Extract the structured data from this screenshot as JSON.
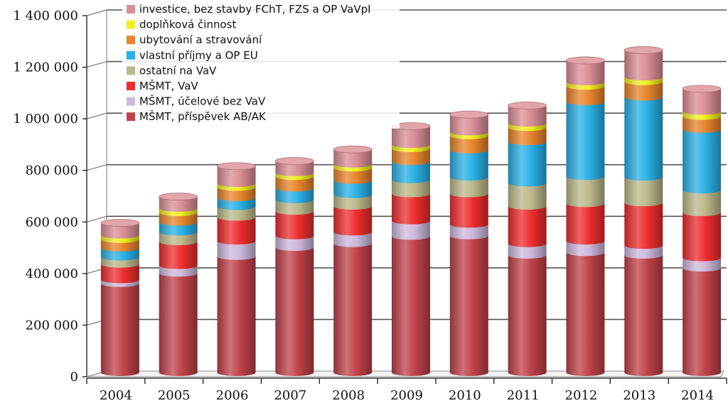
{
  "chart_data": {
    "type": "bar",
    "stacked": true,
    "categories": [
      "2004",
      "2005",
      "2006",
      "2007",
      "2008",
      "2009",
      "2010",
      "2011",
      "2012",
      "2013",
      "2014"
    ],
    "ylim": [
      0,
      1400000
    ],
    "yticks": [
      0,
      200000,
      400000,
      600000,
      800000,
      1000000,
      1200000,
      1400000
    ],
    "ytick_labels": [
      "0",
      "200 000",
      "400 000",
      "600 000",
      "800 000",
      "1 000 000",
      "1 200 000",
      "1 400 000"
    ],
    "grid": true,
    "legend_position": "top-left",
    "series": [
      {
        "name": "MŠMT, příspěvek AB/AK",
        "color": "#c0424a",
        "values": [
          345000,
          385000,
          450000,
          485000,
          500000,
          528000,
          530000,
          455000,
          465000,
          455000,
          405000
        ]
      },
      {
        "name": "MŠMT, účelové bez VaV",
        "color": "#cdb8dc",
        "values": [
          15000,
          30000,
          60000,
          45000,
          45000,
          60000,
          45000,
          45000,
          45000,
          38000,
          40000
        ]
      },
      {
        "name": "MŠMT, VaV",
        "color": "#ee2d2d",
        "values": [
          60000,
          92000,
          92000,
          95000,
          100000,
          105000,
          118000,
          145000,
          145000,
          165000,
          175000
        ]
      },
      {
        "name": "ostatní na VaV",
        "color": "#bcb98a",
        "values": [
          28000,
          38000,
          42000,
          45000,
          45000,
          55000,
          65000,
          90000,
          105000,
          100000,
          88000
        ]
      },
      {
        "name": "vlastní příjmy a OP EU",
        "color": "#2ab0e6",
        "values": [
          35000,
          38000,
          34000,
          45000,
          55000,
          70000,
          105000,
          160000,
          290000,
          310000,
          235000
        ]
      },
      {
        "name": "ubytování a stravování",
        "color": "#e8842c",
        "values": [
          33000,
          37000,
          40000,
          45000,
          48000,
          50000,
          55000,
          55000,
          60000,
          60000,
          50000
        ]
      },
      {
        "name": "doplňková činnost",
        "color": "#f2ee1e",
        "values": [
          17000,
          17000,
          15000,
          15000,
          15000,
          16000,
          15000,
          17000,
          17000,
          18000,
          20000
        ]
      },
      {
        "name": "investice, bez stavby FChT, FZS a OP VaVpI",
        "color": "#d98e96",
        "values": [
          47000,
          45000,
          67000,
          45000,
          57000,
          71000,
          67000,
          68000,
          83000,
          104000,
          87000
        ]
      }
    ]
  }
}
